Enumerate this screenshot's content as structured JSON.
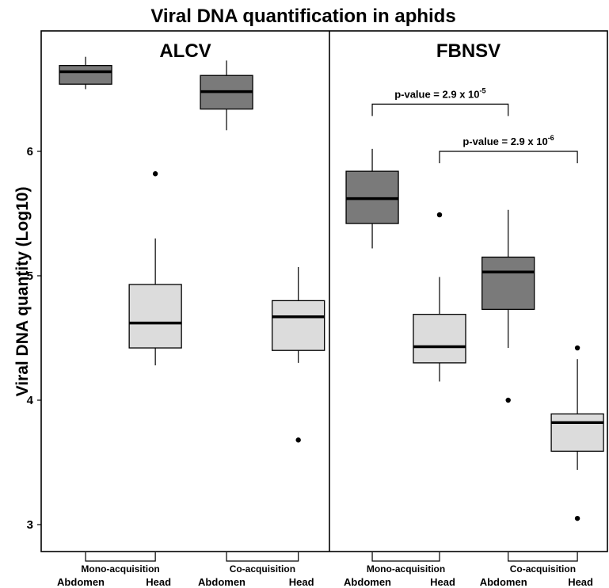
{
  "chart_data": {
    "type": "boxplot",
    "title": "Viral DNA quantification in aphids",
    "ylabel": "Viral DNA quantity (Log10)",
    "xlabel": "",
    "ylim": [
      2.8,
      6.95
    ],
    "yticks": [
      3,
      4,
      5,
      6
    ],
    "grid": false,
    "colors": {
      "abdomen": "#7a7a7a",
      "head": "#dcdcdc",
      "stroke": "#000000",
      "background": "#ffffff"
    },
    "facets": [
      {
        "name": "ALCV",
        "groups": [
          {
            "label": "Mono-acquisition",
            "tissues": [
              "Abdomen",
              "Head"
            ]
          },
          {
            "label": "Co-acquisition",
            "tissues": [
              "Abdomen",
              "Head"
            ]
          }
        ],
        "boxes": [
          {
            "group": "Mono-acquisition",
            "tissue": "Abdomen",
            "min": 6.5,
            "q1": 6.54,
            "median": 6.64,
            "q3": 6.69,
            "max": 6.76,
            "outliers": []
          },
          {
            "group": "Mono-acquisition",
            "tissue": "Head",
            "min": 4.28,
            "q1": 4.42,
            "median": 4.62,
            "q3": 4.93,
            "max": 5.3,
            "outliers": [
              5.82
            ]
          },
          {
            "group": "Co-acquisition",
            "tissue": "Abdomen",
            "min": 6.17,
            "q1": 6.34,
            "median": 6.48,
            "q3": 6.61,
            "max": 6.73,
            "outliers": []
          },
          {
            "group": "Co-acquisition",
            "tissue": "Head",
            "min": 4.3,
            "q1": 4.4,
            "median": 4.67,
            "q3": 4.8,
            "max": 5.07,
            "outliers": [
              3.68
            ]
          }
        ],
        "annotations": []
      },
      {
        "name": "FBNSV",
        "groups": [
          {
            "label": "Mono-acquisition",
            "tissues": [
              "Abdomen",
              "Head"
            ]
          },
          {
            "label": "Co-acquisition",
            "tissues": [
              "Abdomen",
              "Head"
            ]
          }
        ],
        "boxes": [
          {
            "group": "Mono-acquisition",
            "tissue": "Abdomen",
            "min": 5.22,
            "q1": 5.42,
            "median": 5.62,
            "q3": 5.84,
            "max": 6.02,
            "outliers": []
          },
          {
            "group": "Mono-acquisition",
            "tissue": "Head",
            "min": 4.15,
            "q1": 4.3,
            "median": 4.43,
            "q3": 4.69,
            "max": 4.99,
            "outliers": [
              5.49
            ]
          },
          {
            "group": "Co-acquisition",
            "tissue": "Abdomen",
            "min": 4.42,
            "q1": 4.73,
            "median": 5.03,
            "q3": 5.15,
            "max": 5.53,
            "outliers": [
              4.0
            ]
          },
          {
            "group": "Co-acquisition",
            "tissue": "Head",
            "min": 3.44,
            "q1": 3.59,
            "median": 3.82,
            "q3": 3.89,
            "max": 4.33,
            "outliers": [
              4.42,
              3.05
            ]
          }
        ],
        "annotations": [
          {
            "from": 0,
            "to": 2,
            "y": 6.38,
            "text": "p-value = 2.9 x 10",
            "exp": "-5"
          },
          {
            "from": 1,
            "to": 3,
            "y": 6.0,
            "text": "p-value = 2.9 x 10",
            "exp": "-6"
          }
        ]
      }
    ]
  }
}
